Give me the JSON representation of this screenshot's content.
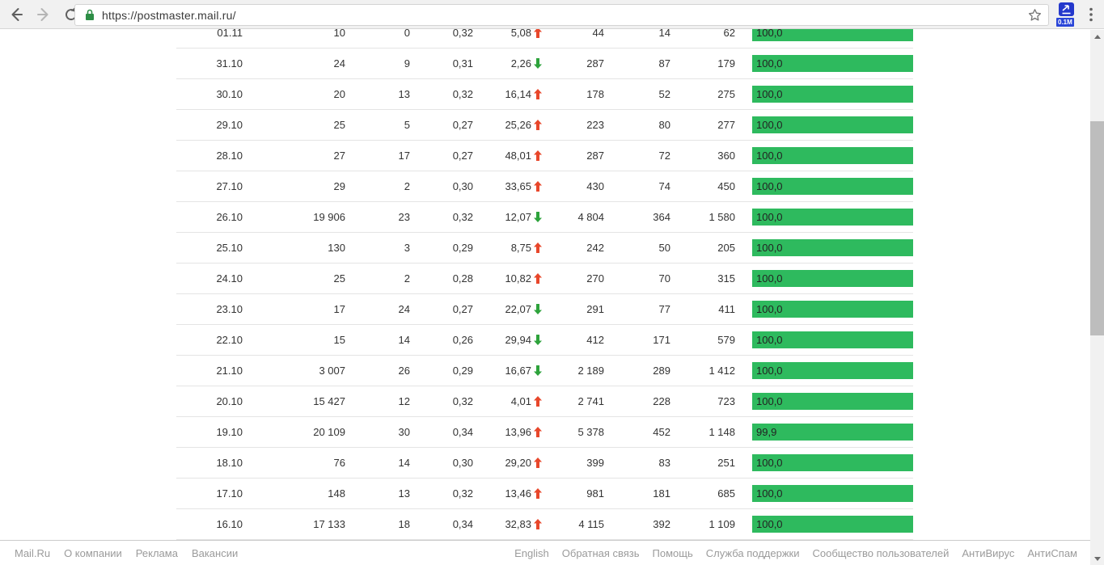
{
  "browser": {
    "url": "https://postmaster.mail.ru/",
    "extension_badge": "0.1M"
  },
  "table": {
    "rows": [
      {
        "date": "01.11",
        "c2": "10",
        "c3": "0",
        "c4": "0,32",
        "c5": "5,08",
        "trend": "up",
        "c6": "44",
        "c7": "14",
        "c8": "62",
        "bar_label": "100,0",
        "bar_value": 100.0
      },
      {
        "date": "31.10",
        "c2": "24",
        "c3": "9",
        "c4": "0,31",
        "c5": "2,26",
        "trend": "down",
        "c6": "287",
        "c7": "87",
        "c8": "179",
        "bar_label": "100,0",
        "bar_value": 100.0
      },
      {
        "date": "30.10",
        "c2": "20",
        "c3": "13",
        "c4": "0,32",
        "c5": "16,14",
        "trend": "up",
        "c6": "178",
        "c7": "52",
        "c8": "275",
        "bar_label": "100,0",
        "bar_value": 100.0
      },
      {
        "date": "29.10",
        "c2": "25",
        "c3": "5",
        "c4": "0,27",
        "c5": "25,26",
        "trend": "up",
        "c6": "223",
        "c7": "80",
        "c8": "277",
        "bar_label": "100,0",
        "bar_value": 100.0
      },
      {
        "date": "28.10",
        "c2": "27",
        "c3": "17",
        "c4": "0,27",
        "c5": "48,01",
        "trend": "up",
        "c6": "287",
        "c7": "72",
        "c8": "360",
        "bar_label": "100,0",
        "bar_value": 100.0
      },
      {
        "date": "27.10",
        "c2": "29",
        "c3": "2",
        "c4": "0,30",
        "c5": "33,65",
        "trend": "up",
        "c6": "430",
        "c7": "74",
        "c8": "450",
        "bar_label": "100,0",
        "bar_value": 100.0
      },
      {
        "date": "26.10",
        "c2": "19 906",
        "c3": "23",
        "c4": "0,32",
        "c5": "12,07",
        "trend": "down",
        "c6": "4 804",
        "c7": "364",
        "c8": "1 580",
        "bar_label": "100,0",
        "bar_value": 100.0
      },
      {
        "date": "25.10",
        "c2": "130",
        "c3": "3",
        "c4": "0,29",
        "c5": "8,75",
        "trend": "up",
        "c6": "242",
        "c7": "50",
        "c8": "205",
        "bar_label": "100,0",
        "bar_value": 100.0
      },
      {
        "date": "24.10",
        "c2": "25",
        "c3": "2",
        "c4": "0,28",
        "c5": "10,82",
        "trend": "up",
        "c6": "270",
        "c7": "70",
        "c8": "315",
        "bar_label": "100,0",
        "bar_value": 100.0
      },
      {
        "date": "23.10",
        "c2": "17",
        "c3": "24",
        "c4": "0,27",
        "c5": "22,07",
        "trend": "down",
        "c6": "291",
        "c7": "77",
        "c8": "411",
        "bar_label": "100,0",
        "bar_value": 100.0
      },
      {
        "date": "22.10",
        "c2": "15",
        "c3": "14",
        "c4": "0,26",
        "c5": "29,94",
        "trend": "down",
        "c6": "412",
        "c7": "171",
        "c8": "579",
        "bar_label": "100,0",
        "bar_value": 100.0
      },
      {
        "date": "21.10",
        "c2": "3 007",
        "c3": "26",
        "c4": "0,29",
        "c5": "16,67",
        "trend": "down",
        "c6": "2 189",
        "c7": "289",
        "c8": "1 412",
        "bar_label": "100,0",
        "bar_value": 100.0
      },
      {
        "date": "20.10",
        "c2": "15 427",
        "c3": "12",
        "c4": "0,32",
        "c5": "4,01",
        "trend": "up",
        "c6": "2 741",
        "c7": "228",
        "c8": "723",
        "bar_label": "100,0",
        "bar_value": 100.0
      },
      {
        "date": "19.10",
        "c2": "20 109",
        "c3": "30",
        "c4": "0,34",
        "c5": "13,96",
        "trend": "up",
        "c6": "5 378",
        "c7": "452",
        "c8": "1 148",
        "bar_label": "99,9",
        "bar_value": 99.9
      },
      {
        "date": "18.10",
        "c2": "76",
        "c3": "14",
        "c4": "0,30",
        "c5": "29,20",
        "trend": "up",
        "c6": "399",
        "c7": "83",
        "c8": "251",
        "bar_label": "100,0",
        "bar_value": 100.0
      },
      {
        "date": "17.10",
        "c2": "148",
        "c3": "13",
        "c4": "0,32",
        "c5": "13,46",
        "trend": "up",
        "c6": "981",
        "c7": "181",
        "c8": "685",
        "bar_label": "100,0",
        "bar_value": 100.0
      },
      {
        "date": "16.10",
        "c2": "17 133",
        "c3": "18",
        "c4": "0,34",
        "c5": "32,83",
        "trend": "up",
        "c6": "4 115",
        "c7": "392",
        "c8": "1 109",
        "bar_label": "100,0",
        "bar_value": 100.0
      }
    ]
  },
  "footer": {
    "left": [
      "Mail.Ru",
      "О компании",
      "Реклама",
      "Вакансии"
    ],
    "right": [
      "English",
      "Обратная связь",
      "Помощь",
      "Служба поддержки",
      "Сообщество пользователей",
      "АнтиВирус",
      "АнтиСпам"
    ]
  },
  "colors": {
    "bar_green": "#2eba5e",
    "trend_up": "#e8472b",
    "trend_down": "#2ea33c",
    "lock_green": "#2d8e46",
    "extension_blue": "#2438cc",
    "extension_badge_blue": "#2a46d8"
  }
}
